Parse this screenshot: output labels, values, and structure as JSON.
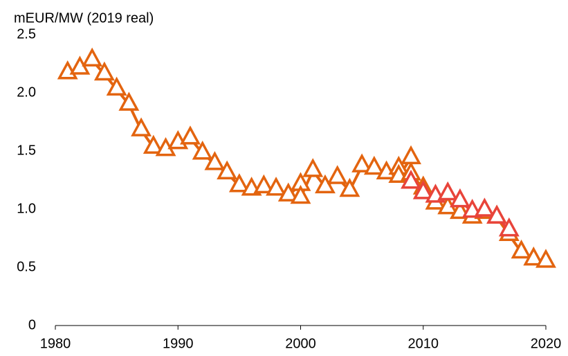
{
  "chart_data": {
    "type": "line",
    "y_label": "mEUR/MW (2019 real)",
    "xlim": [
      1980,
      2020
    ],
    "xticks": [
      1980,
      1990,
      2000,
      2010,
      2020
    ],
    "ylim": [
      0,
      2.5
    ],
    "yticks": [
      0,
      0.5,
      {
        "value": 1,
        "label": "1.0"
      },
      1.5,
      {
        "value": 2,
        "label": "2.0"
      },
      2.5
    ],
    "series": [
      {
        "color": "#e3640f",
        "x": [
          1981,
          1982,
          1983,
          1984,
          1985,
          1986,
          1987,
          1988,
          1989,
          1990,
          1991,
          1992,
          1993,
          1994,
          1995,
          1996,
          1997,
          1998,
          1999,
          2000,
          2000,
          2001,
          2002,
          2003,
          2004,
          2005,
          2006,
          2007,
          2008,
          2008,
          2009,
          2009,
          2010,
          2011,
          2012,
          2013,
          2014,
          2015,
          2016,
          2017,
          2018,
          2019,
          2020
        ],
        "values": [
          2.17,
          2.21,
          2.28,
          2.16,
          2.03,
          1.9,
          1.68,
          1.53,
          1.51,
          1.57,
          1.61,
          1.48,
          1.39,
          1.31,
          1.2,
          1.17,
          1.19,
          1.17,
          1.12,
          1.21,
          1.1,
          1.33,
          1.19,
          1.27,
          1.16,
          1.37,
          1.35,
          1.31,
          1.35,
          1.28,
          1.44,
          1.3,
          1.18,
          1.05,
          1.01,
          0.97,
          0.93,
          0.97,
          0.93,
          0.78,
          0.63,
          0.57,
          0.55
        ]
      },
      {
        "color": "#e8443a",
        "x": [
          2009,
          2010,
          2011,
          2012,
          2013,
          2014,
          2015,
          2016,
          2017
        ],
        "values": [
          1.23,
          1.14,
          1.11,
          1.13,
          1.07,
          0.98,
          0.99,
          0.93,
          0.82
        ]
      }
    ]
  }
}
